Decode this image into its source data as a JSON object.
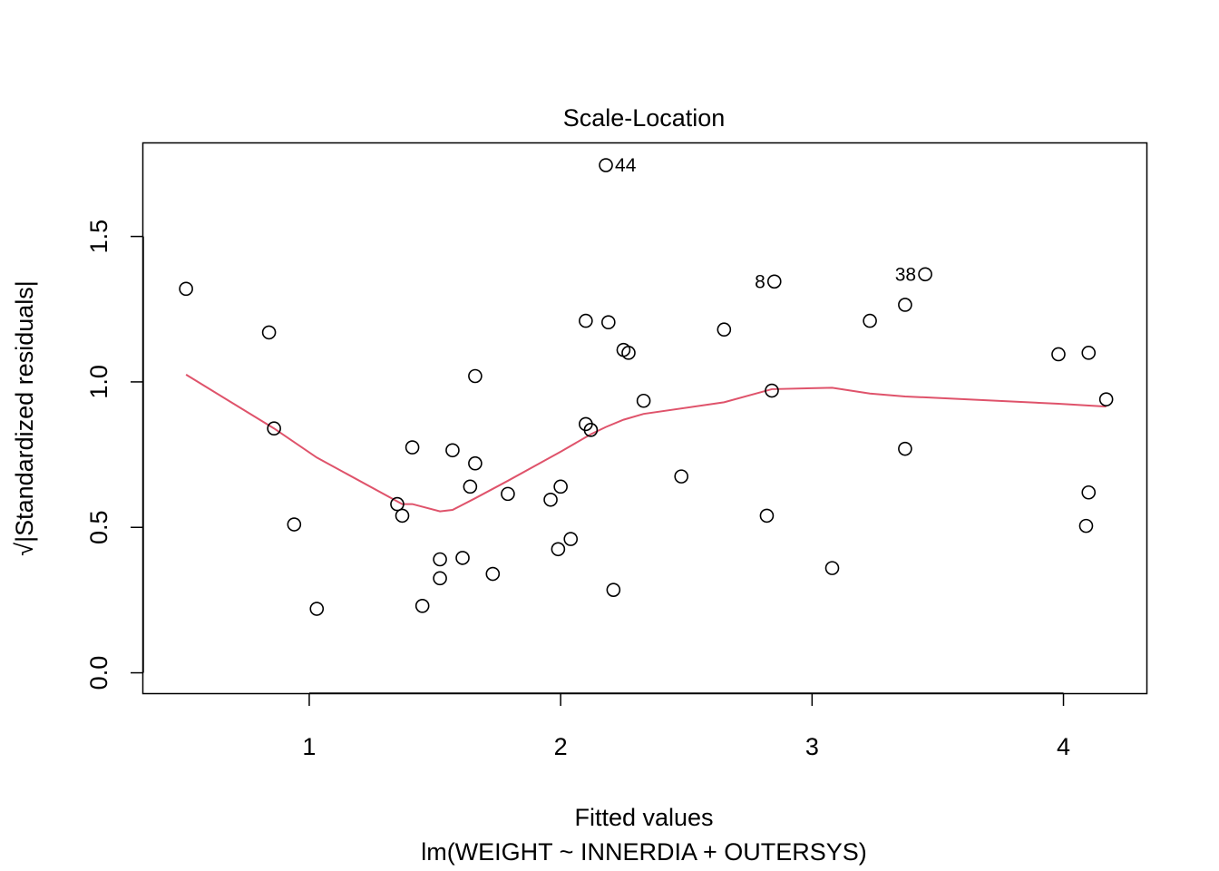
{
  "chart_data": {
    "type": "scatter",
    "title": "Scale-Location",
    "xlabel": "Fitted values",
    "sublabel": "lm(WEIGHT ~ INNERDIA + OUTERSYS)",
    "ylabel": "√|Standardized residuals|",
    "xlim": [
      0.34,
      4.33
    ],
    "ylim": [
      -0.07,
      1.82
    ],
    "xticks": [
      1,
      2,
      3,
      4
    ],
    "xtick_labels": [
      "1",
      "2",
      "3",
      "4"
    ],
    "yticks": [
      0.0,
      0.5,
      1.0,
      1.5
    ],
    "ytick_labels": [
      "0.0",
      "0.5",
      "1.0",
      "1.5"
    ],
    "grid": false,
    "points": [
      {
        "x": 0.51,
        "y": 1.32
      },
      {
        "x": 0.84,
        "y": 1.17
      },
      {
        "x": 0.86,
        "y": 0.84
      },
      {
        "x": 0.94,
        "y": 0.51
      },
      {
        "x": 1.03,
        "y": 0.22
      },
      {
        "x": 1.35,
        "y": 0.58
      },
      {
        "x": 1.37,
        "y": 0.54
      },
      {
        "x": 1.41,
        "y": 0.775
      },
      {
        "x": 1.45,
        "y": 0.23
      },
      {
        "x": 1.52,
        "y": 0.39
      },
      {
        "x": 1.52,
        "y": 0.325
      },
      {
        "x": 1.57,
        "y": 0.765
      },
      {
        "x": 1.61,
        "y": 0.395
      },
      {
        "x": 1.64,
        "y": 0.64
      },
      {
        "x": 1.66,
        "y": 1.02
      },
      {
        "x": 1.66,
        "y": 0.72
      },
      {
        "x": 1.73,
        "y": 0.34
      },
      {
        "x": 1.79,
        "y": 0.615
      },
      {
        "x": 1.96,
        "y": 0.595
      },
      {
        "x": 1.99,
        "y": 0.425
      },
      {
        "x": 2.0,
        "y": 0.64
      },
      {
        "x": 2.04,
        "y": 0.46
      },
      {
        "x": 2.1,
        "y": 1.21
      },
      {
        "x": 2.1,
        "y": 0.855
      },
      {
        "x": 2.12,
        "y": 0.835
      },
      {
        "x": 2.18,
        "y": 1.745,
        "label": "44"
      },
      {
        "x": 2.19,
        "y": 1.205
      },
      {
        "x": 2.21,
        "y": 0.285
      },
      {
        "x": 2.25,
        "y": 1.11
      },
      {
        "x": 2.27,
        "y": 1.1
      },
      {
        "x": 2.33,
        "y": 0.935
      },
      {
        "x": 2.48,
        "y": 0.675
      },
      {
        "x": 2.65,
        "y": 1.18
      },
      {
        "x": 2.82,
        "y": 0.54
      },
      {
        "x": 2.84,
        "y": 0.97
      },
      {
        "x": 2.85,
        "y": 1.345,
        "label": "8"
      },
      {
        "x": 3.08,
        "y": 0.36
      },
      {
        "x": 3.23,
        "y": 1.21
      },
      {
        "x": 3.37,
        "y": 0.77
      },
      {
        "x": 3.37,
        "y": 1.265
      },
      {
        "x": 3.45,
        "y": 1.37,
        "label": "38"
      },
      {
        "x": 3.98,
        "y": 1.095
      },
      {
        "x": 4.09,
        "y": 0.505
      },
      {
        "x": 4.1,
        "y": 1.1
      },
      {
        "x": 4.1,
        "y": 0.62
      },
      {
        "x": 4.17,
        "y": 0.94
      }
    ],
    "smooth_line": {
      "color": "#DF536B",
      "x": [
        0.51,
        0.86,
        1.03,
        1.37,
        1.41,
        1.52,
        1.57,
        1.66,
        1.79,
        2.0,
        2.12,
        2.18,
        2.25,
        2.33,
        2.65,
        2.84,
        3.08,
        3.23,
        3.37,
        3.98,
        4.17
      ],
      "y": [
        1.025,
        0.84,
        0.74,
        0.58,
        0.58,
        0.555,
        0.56,
        0.6,
        0.66,
        0.76,
        0.82,
        0.845,
        0.87,
        0.89,
        0.93,
        0.975,
        0.98,
        0.96,
        0.95,
        0.925,
        0.915
      ]
    }
  }
}
